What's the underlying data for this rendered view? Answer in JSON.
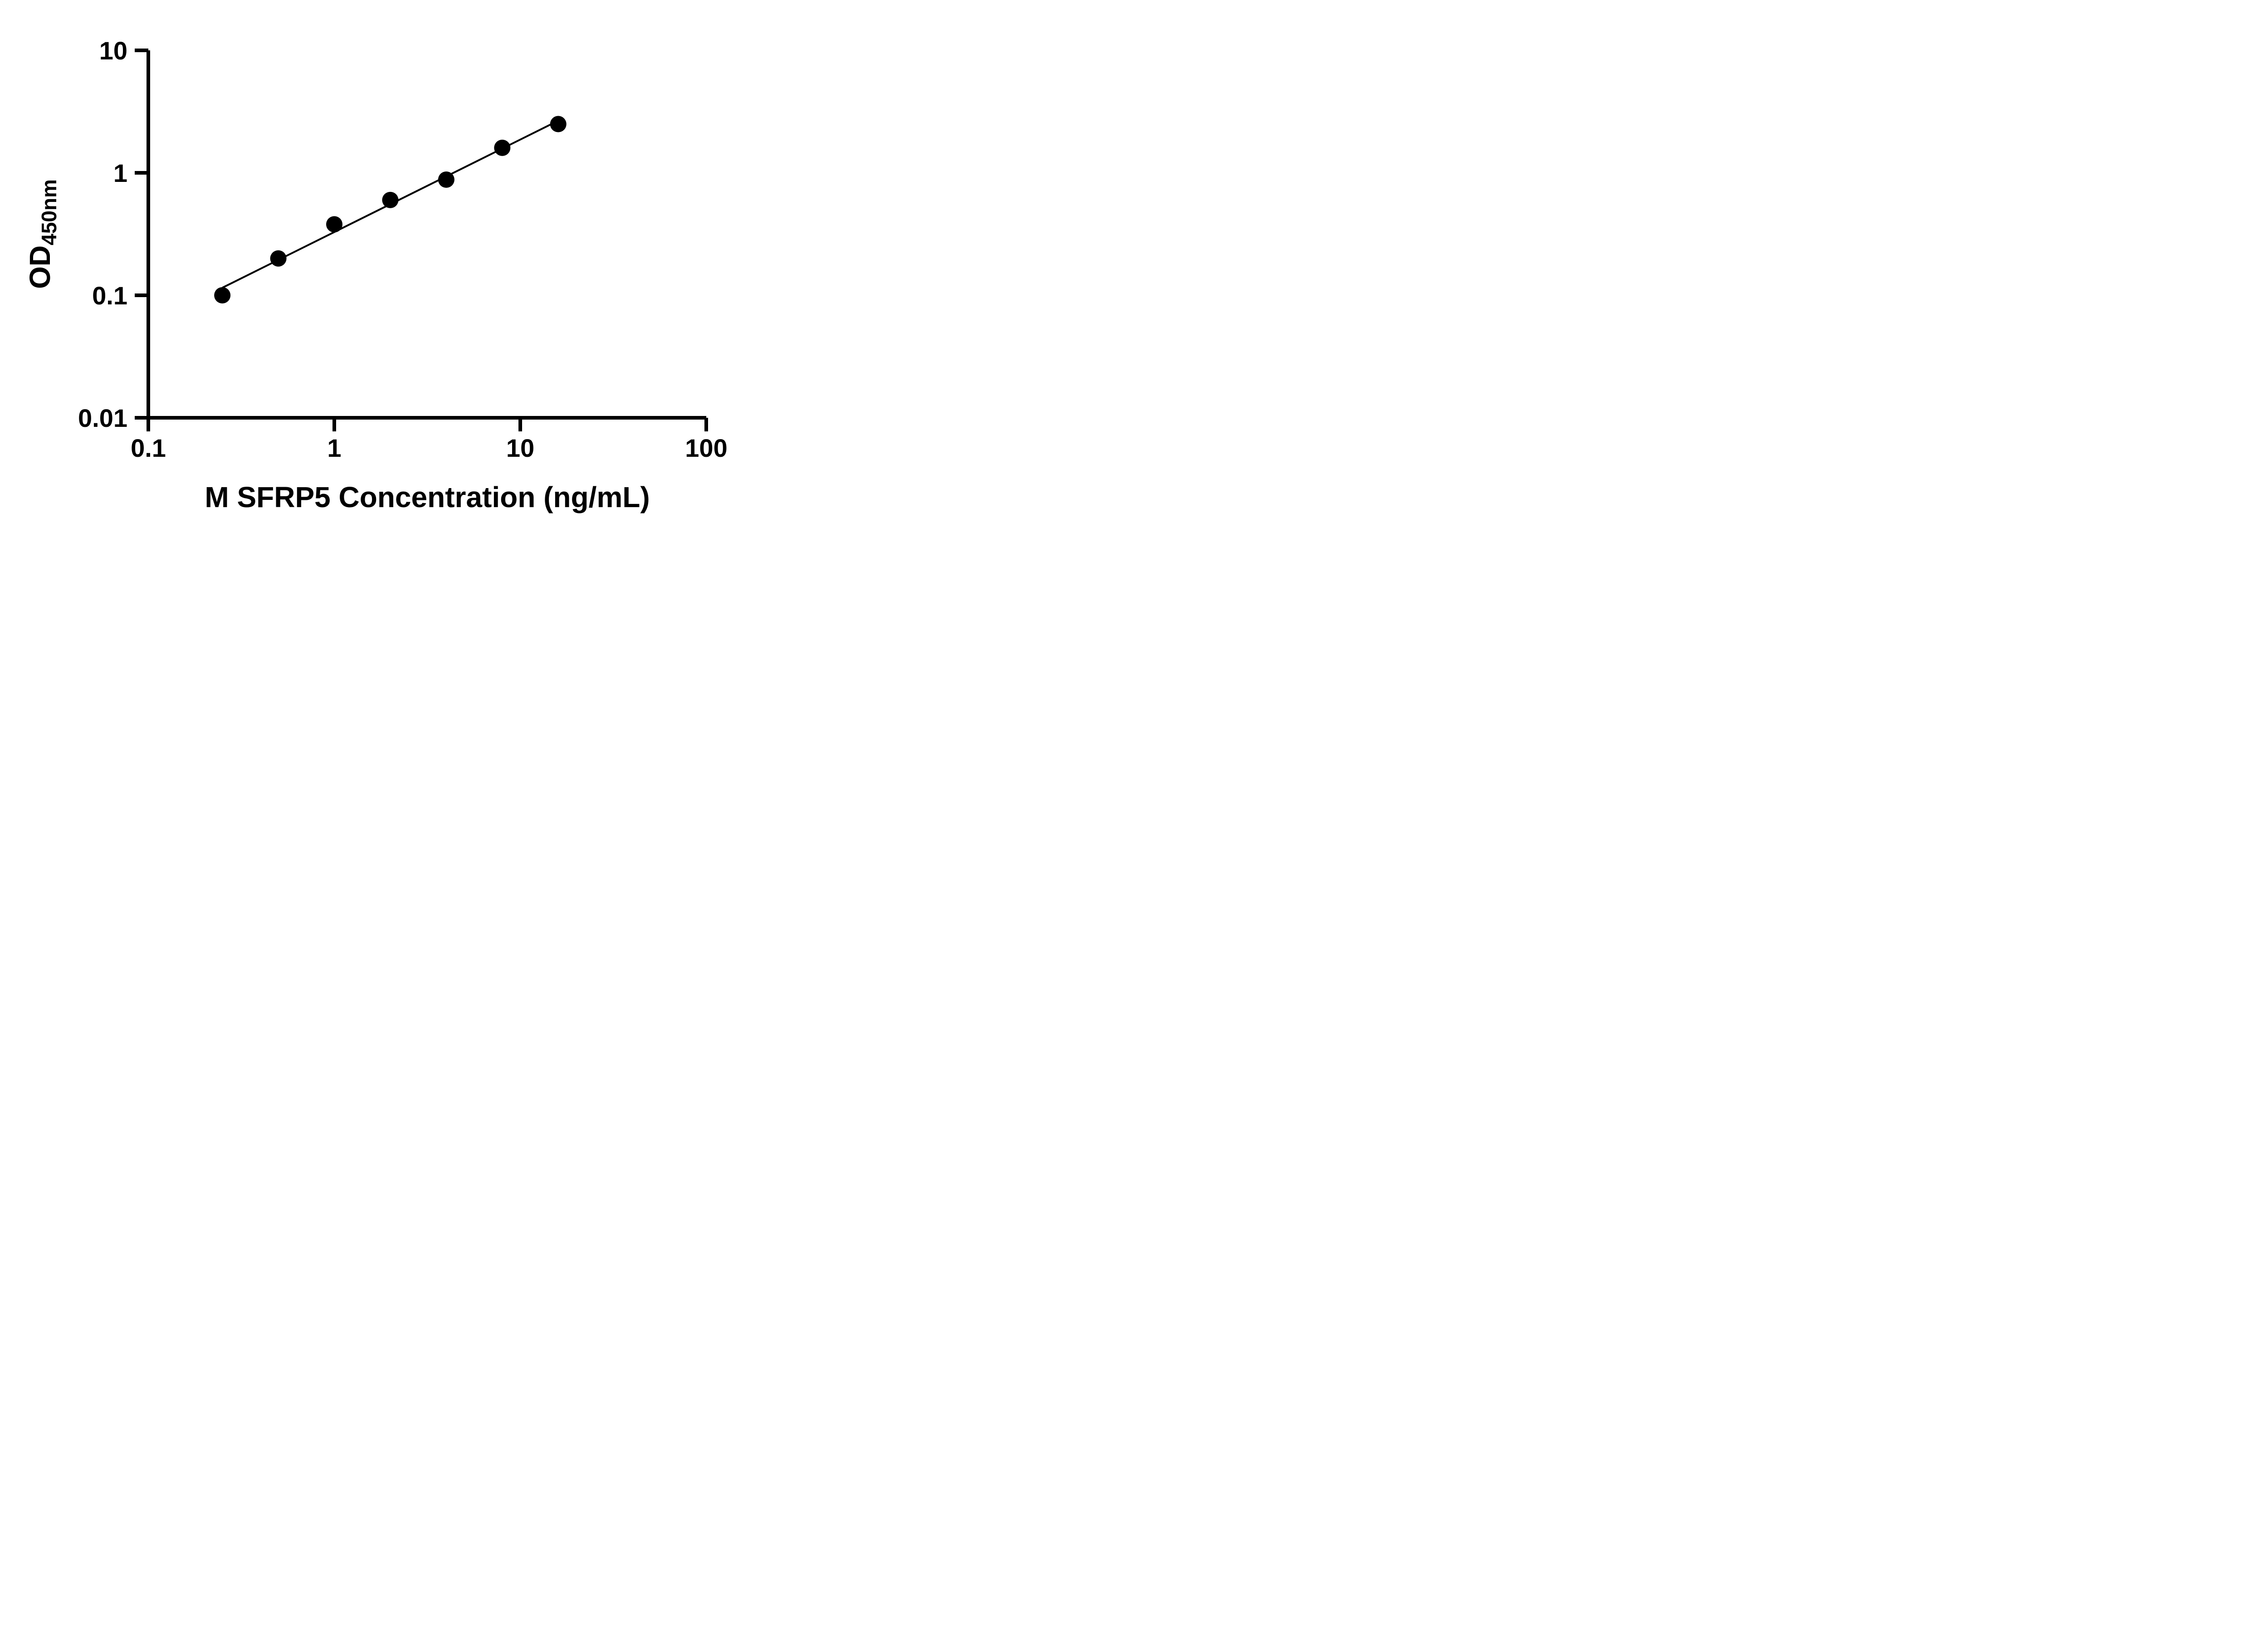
{
  "chart_data": {
    "type": "scatter",
    "title": "",
    "xlabel": "M SFRP5 Concentration (ng/mL)",
    "ylabel_main": "OD",
    "ylabel_sub": "450nm",
    "x": [
      0.25,
      0.5,
      1,
      2,
      4,
      8,
      16
    ],
    "y": [
      0.1,
      0.2,
      0.38,
      0.6,
      0.88,
      1.6,
      2.5
    ],
    "x_scale": "log",
    "y_scale": "log",
    "xlim": [
      0.1,
      100
    ],
    "ylim": [
      0.01,
      10
    ],
    "x_ticks": [
      {
        "value": 0.1,
        "label": "0.1"
      },
      {
        "value": 1,
        "label": "1"
      },
      {
        "value": 10,
        "label": "10"
      },
      {
        "value": 100,
        "label": "100"
      }
    ],
    "y_ticks": [
      {
        "value": 0.01,
        "label": "0.01"
      },
      {
        "value": 0.1,
        "label": "0.1"
      },
      {
        "value": 1,
        "label": "1"
      },
      {
        "value": 10,
        "label": "10"
      }
    ],
    "trendline": "linear fit in log-log space through data points",
    "grid": false,
    "legend": null,
    "point_color": "#000000",
    "line_color": "#000000",
    "axis_color": "#000000",
    "background": "#ffffff"
  }
}
